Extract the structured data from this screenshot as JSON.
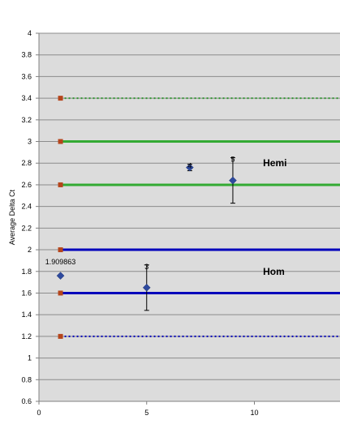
{
  "chart_data": {
    "type": "scatter",
    "ylabel": "Average Delta Ct",
    "xlim": [
      0,
      14.5
    ],
    "ylim": [
      0.6,
      4
    ],
    "grid": "horizontal",
    "x_ticks": [
      0,
      5,
      10
    ],
    "y_ticks": [
      "4",
      "3.8",
      "3.6",
      "3.4",
      "3.2",
      "3",
      "2.8",
      "2.6",
      "2.4",
      "2.2",
      "2",
      "1.8",
      "1.6",
      "1.4",
      "1.2",
      "1",
      "0.8",
      "0.6"
    ],
    "reference_lines": [
      {
        "y": 3.4,
        "color": "#339933",
        "style": "dotted"
      },
      {
        "y": 3.0,
        "color": "#33aa33",
        "style": "solid"
      },
      {
        "y": 2.6,
        "color": "#33aa33",
        "style": "solid"
      },
      {
        "y": 2.0,
        "color": "#0000bb",
        "style": "solid"
      },
      {
        "y": 1.6,
        "color": "#0000bb",
        "style": "solid"
      },
      {
        "y": 1.2,
        "color": "#0000bb",
        "style": "dotted"
      }
    ],
    "marker_color": "#b5451b",
    "point_color": "#2e4a9e",
    "points": [
      {
        "x": 1,
        "y": 1.76,
        "err": 0.0,
        "label": "1.909863"
      },
      {
        "x": 5,
        "y": 1.65,
        "err": 0.21,
        "label": "3"
      },
      {
        "x": 7,
        "y": 2.76,
        "err": 0.03,
        "label": "4"
      },
      {
        "x": 9,
        "y": 2.64,
        "err": 0.21,
        "label": "5"
      }
    ],
    "group_labels": [
      {
        "text": "Hemi",
        "x": 10.4,
        "y": 2.8
      },
      {
        "text": "Hom",
        "x": 10.4,
        "y": 1.8
      }
    ]
  }
}
